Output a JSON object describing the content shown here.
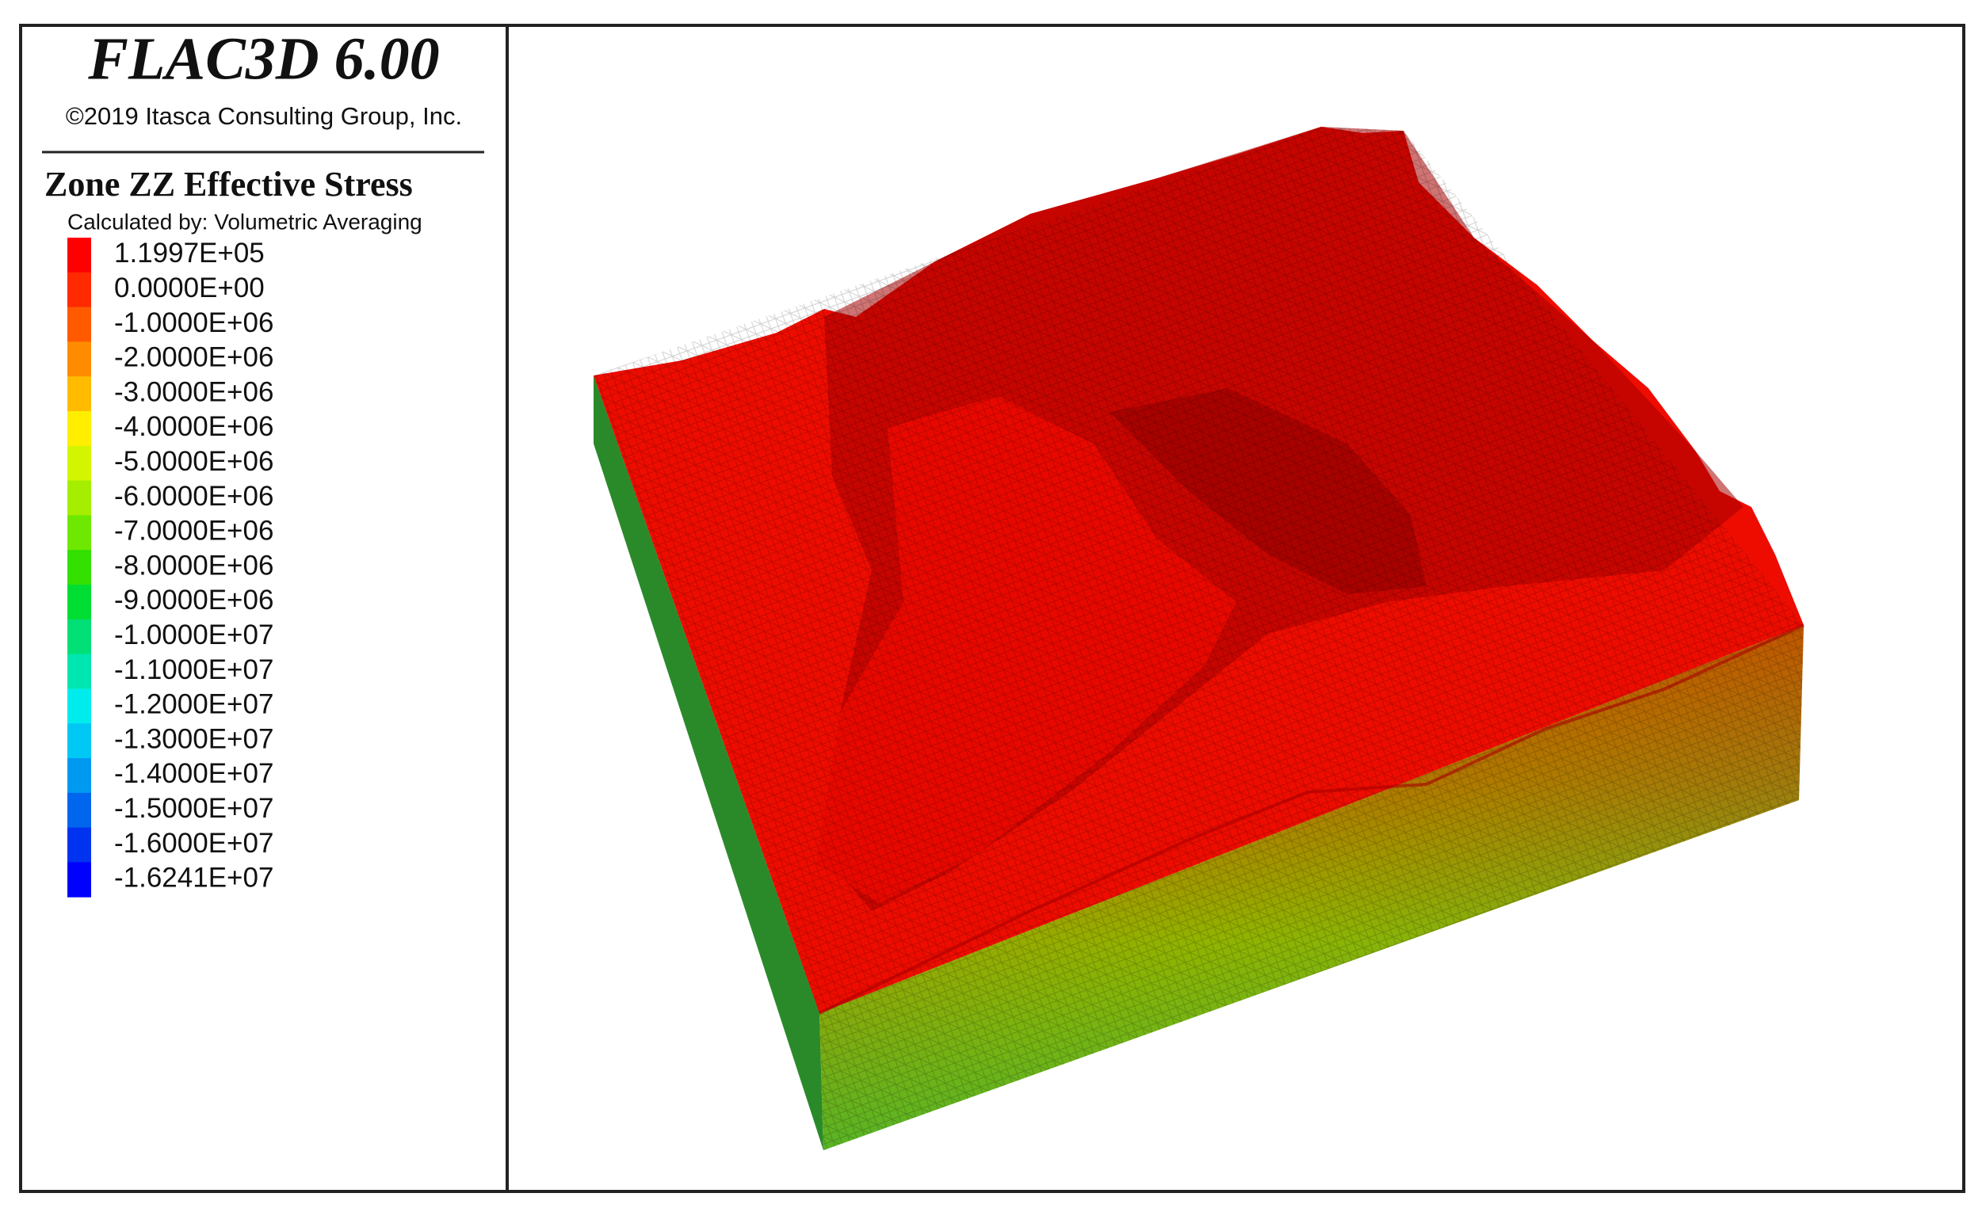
{
  "header": {
    "title": "FLAC3D 6.00",
    "copyright": "©2019 Itasca Consulting Group, Inc."
  },
  "legend": {
    "title": "Zone ZZ Effective Stress",
    "subtitle": "Calculated by: Volumetric Averaging",
    "items": [
      {
        "label": "1.1997E+05",
        "color": "#ff0000"
      },
      {
        "label": "0.0000E+00",
        "color": "#ff2a00"
      },
      {
        "label": "-1.0000E+06",
        "color": "#ff5a00"
      },
      {
        "label": "-2.0000E+06",
        "color": "#ff8c00"
      },
      {
        "label": "-3.0000E+06",
        "color": "#ffbb00"
      },
      {
        "label": "-4.0000E+06",
        "color": "#ffee00"
      },
      {
        "label": "-5.0000E+06",
        "color": "#d4f500"
      },
      {
        "label": "-6.0000E+06",
        "color": "#a6ee00"
      },
      {
        "label": "-7.0000E+06",
        "color": "#6ee800"
      },
      {
        "label": "-8.0000E+06",
        "color": "#33e000"
      },
      {
        "label": "-9.0000E+06",
        "color": "#00dd33"
      },
      {
        "label": "-1.0000E+07",
        "color": "#00e077"
      },
      {
        "label": "-1.1000E+07",
        "color": "#00e6b0"
      },
      {
        "label": "-1.2000E+07",
        "color": "#00ecec"
      },
      {
        "label": "-1.3000E+07",
        "color": "#00c8f5"
      },
      {
        "label": "-1.4000E+07",
        "color": "#0099f0"
      },
      {
        "label": "-1.5000E+07",
        "color": "#0066ee"
      },
      {
        "label": "-1.6000E+07",
        "color": "#0033f0"
      },
      {
        "label": "-1.6241E+07",
        "color": "#0000ff"
      }
    ]
  }
}
